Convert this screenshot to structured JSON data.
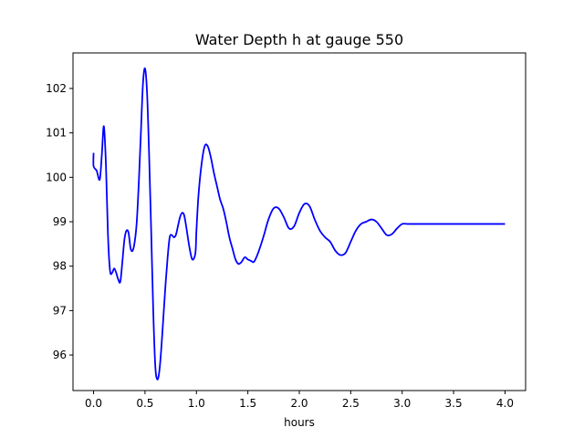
{
  "chart_data": {
    "type": "line",
    "title": "Water Depth h at gauge 550",
    "xlabel": "hours",
    "ylabel": "",
    "xlim": [
      -0.2,
      4.2
    ],
    "ylim": [
      95.2,
      102.8
    ],
    "xticks": [
      0.0,
      0.5,
      1.0,
      1.5,
      2.0,
      2.5,
      3.0,
      3.5,
      4.0
    ],
    "xtick_labels": [
      "0.0",
      "0.5",
      "1.0",
      "1.5",
      "2.0",
      "2.5",
      "3.0",
      "3.5",
      "4.0"
    ],
    "yticks": [
      96,
      97,
      98,
      99,
      100,
      101,
      102
    ],
    "ytick_labels": [
      "96",
      "97",
      "98",
      "99",
      "100",
      "101",
      "102"
    ],
    "grid": false,
    "series": [
      {
        "color": "#0000ff",
        "x": [
          0.0,
          0.0,
          0.03,
          0.06,
          0.08,
          0.1,
          0.12,
          0.14,
          0.16,
          0.18,
          0.2,
          0.22,
          0.24,
          0.26,
          0.28,
          0.3,
          0.32,
          0.34,
          0.36,
          0.38,
          0.4,
          0.42,
          0.44,
          0.46,
          0.48,
          0.5,
          0.52,
          0.54,
          0.56,
          0.58,
          0.6,
          0.62,
          0.64,
          0.66,
          0.68,
          0.7,
          0.72,
          0.74,
          0.76,
          0.78,
          0.8,
          0.82,
          0.84,
          0.86,
          0.88,
          0.9,
          0.93,
          0.96,
          0.99,
          1.0,
          1.02,
          1.05,
          1.08,
          1.11,
          1.14,
          1.17,
          1.2,
          1.23,
          1.26,
          1.29,
          1.32,
          1.35,
          1.38,
          1.41,
          1.44,
          1.47,
          1.5,
          1.53,
          1.56,
          1.6,
          1.65,
          1.7,
          1.75,
          1.8,
          1.85,
          1.9,
          1.95,
          2.0,
          2.05,
          2.1,
          2.15,
          2.2,
          2.25,
          2.3,
          2.35,
          2.4,
          2.45,
          2.5,
          2.55,
          2.6,
          2.65,
          2.7,
          2.75,
          2.8,
          2.85,
          2.9,
          2.95,
          3.0,
          3.05,
          3.1,
          3.15,
          3.2,
          3.25,
          3.3,
          3.35,
          3.4,
          3.45,
          3.5,
          3.55,
          3.6,
          3.65,
          3.7,
          3.75,
          3.8,
          3.85,
          3.9,
          3.95,
          4.0
        ],
        "y": [
          100.55,
          100.25,
          100.15,
          99.95,
          100.5,
          101.15,
          100.3,
          98.7,
          97.9,
          97.85,
          97.95,
          97.85,
          97.7,
          97.65,
          98.1,
          98.6,
          98.8,
          98.75,
          98.4,
          98.35,
          98.55,
          99.0,
          99.9,
          101.0,
          102.1,
          102.45,
          101.9,
          100.5,
          98.8,
          97.0,
          95.75,
          95.45,
          95.65,
          96.2,
          96.9,
          97.6,
          98.2,
          98.65,
          98.7,
          98.65,
          98.7,
          98.9,
          99.1,
          99.2,
          99.15,
          98.9,
          98.45,
          98.15,
          98.3,
          98.8,
          99.6,
          100.3,
          100.7,
          100.7,
          100.45,
          100.1,
          99.8,
          99.5,
          99.3,
          99.0,
          98.65,
          98.4,
          98.15,
          98.05,
          98.1,
          98.2,
          98.15,
          98.12,
          98.1,
          98.3,
          98.65,
          99.05,
          99.3,
          99.3,
          99.1,
          98.85,
          98.9,
          99.2,
          99.4,
          99.35,
          99.05,
          98.8,
          98.65,
          98.55,
          98.35,
          98.25,
          98.3,
          98.55,
          98.8,
          98.95,
          99.0,
          99.05,
          99.0,
          98.85,
          98.7,
          98.72,
          98.85,
          98.95,
          98.95,
          98.95,
          98.95,
          98.95,
          98.95,
          98.95,
          98.95,
          98.95,
          98.95,
          98.95,
          98.95,
          98.95,
          98.95,
          98.95,
          98.95,
          98.95,
          98.95,
          98.95,
          98.95,
          98.95
        ]
      }
    ]
  }
}
